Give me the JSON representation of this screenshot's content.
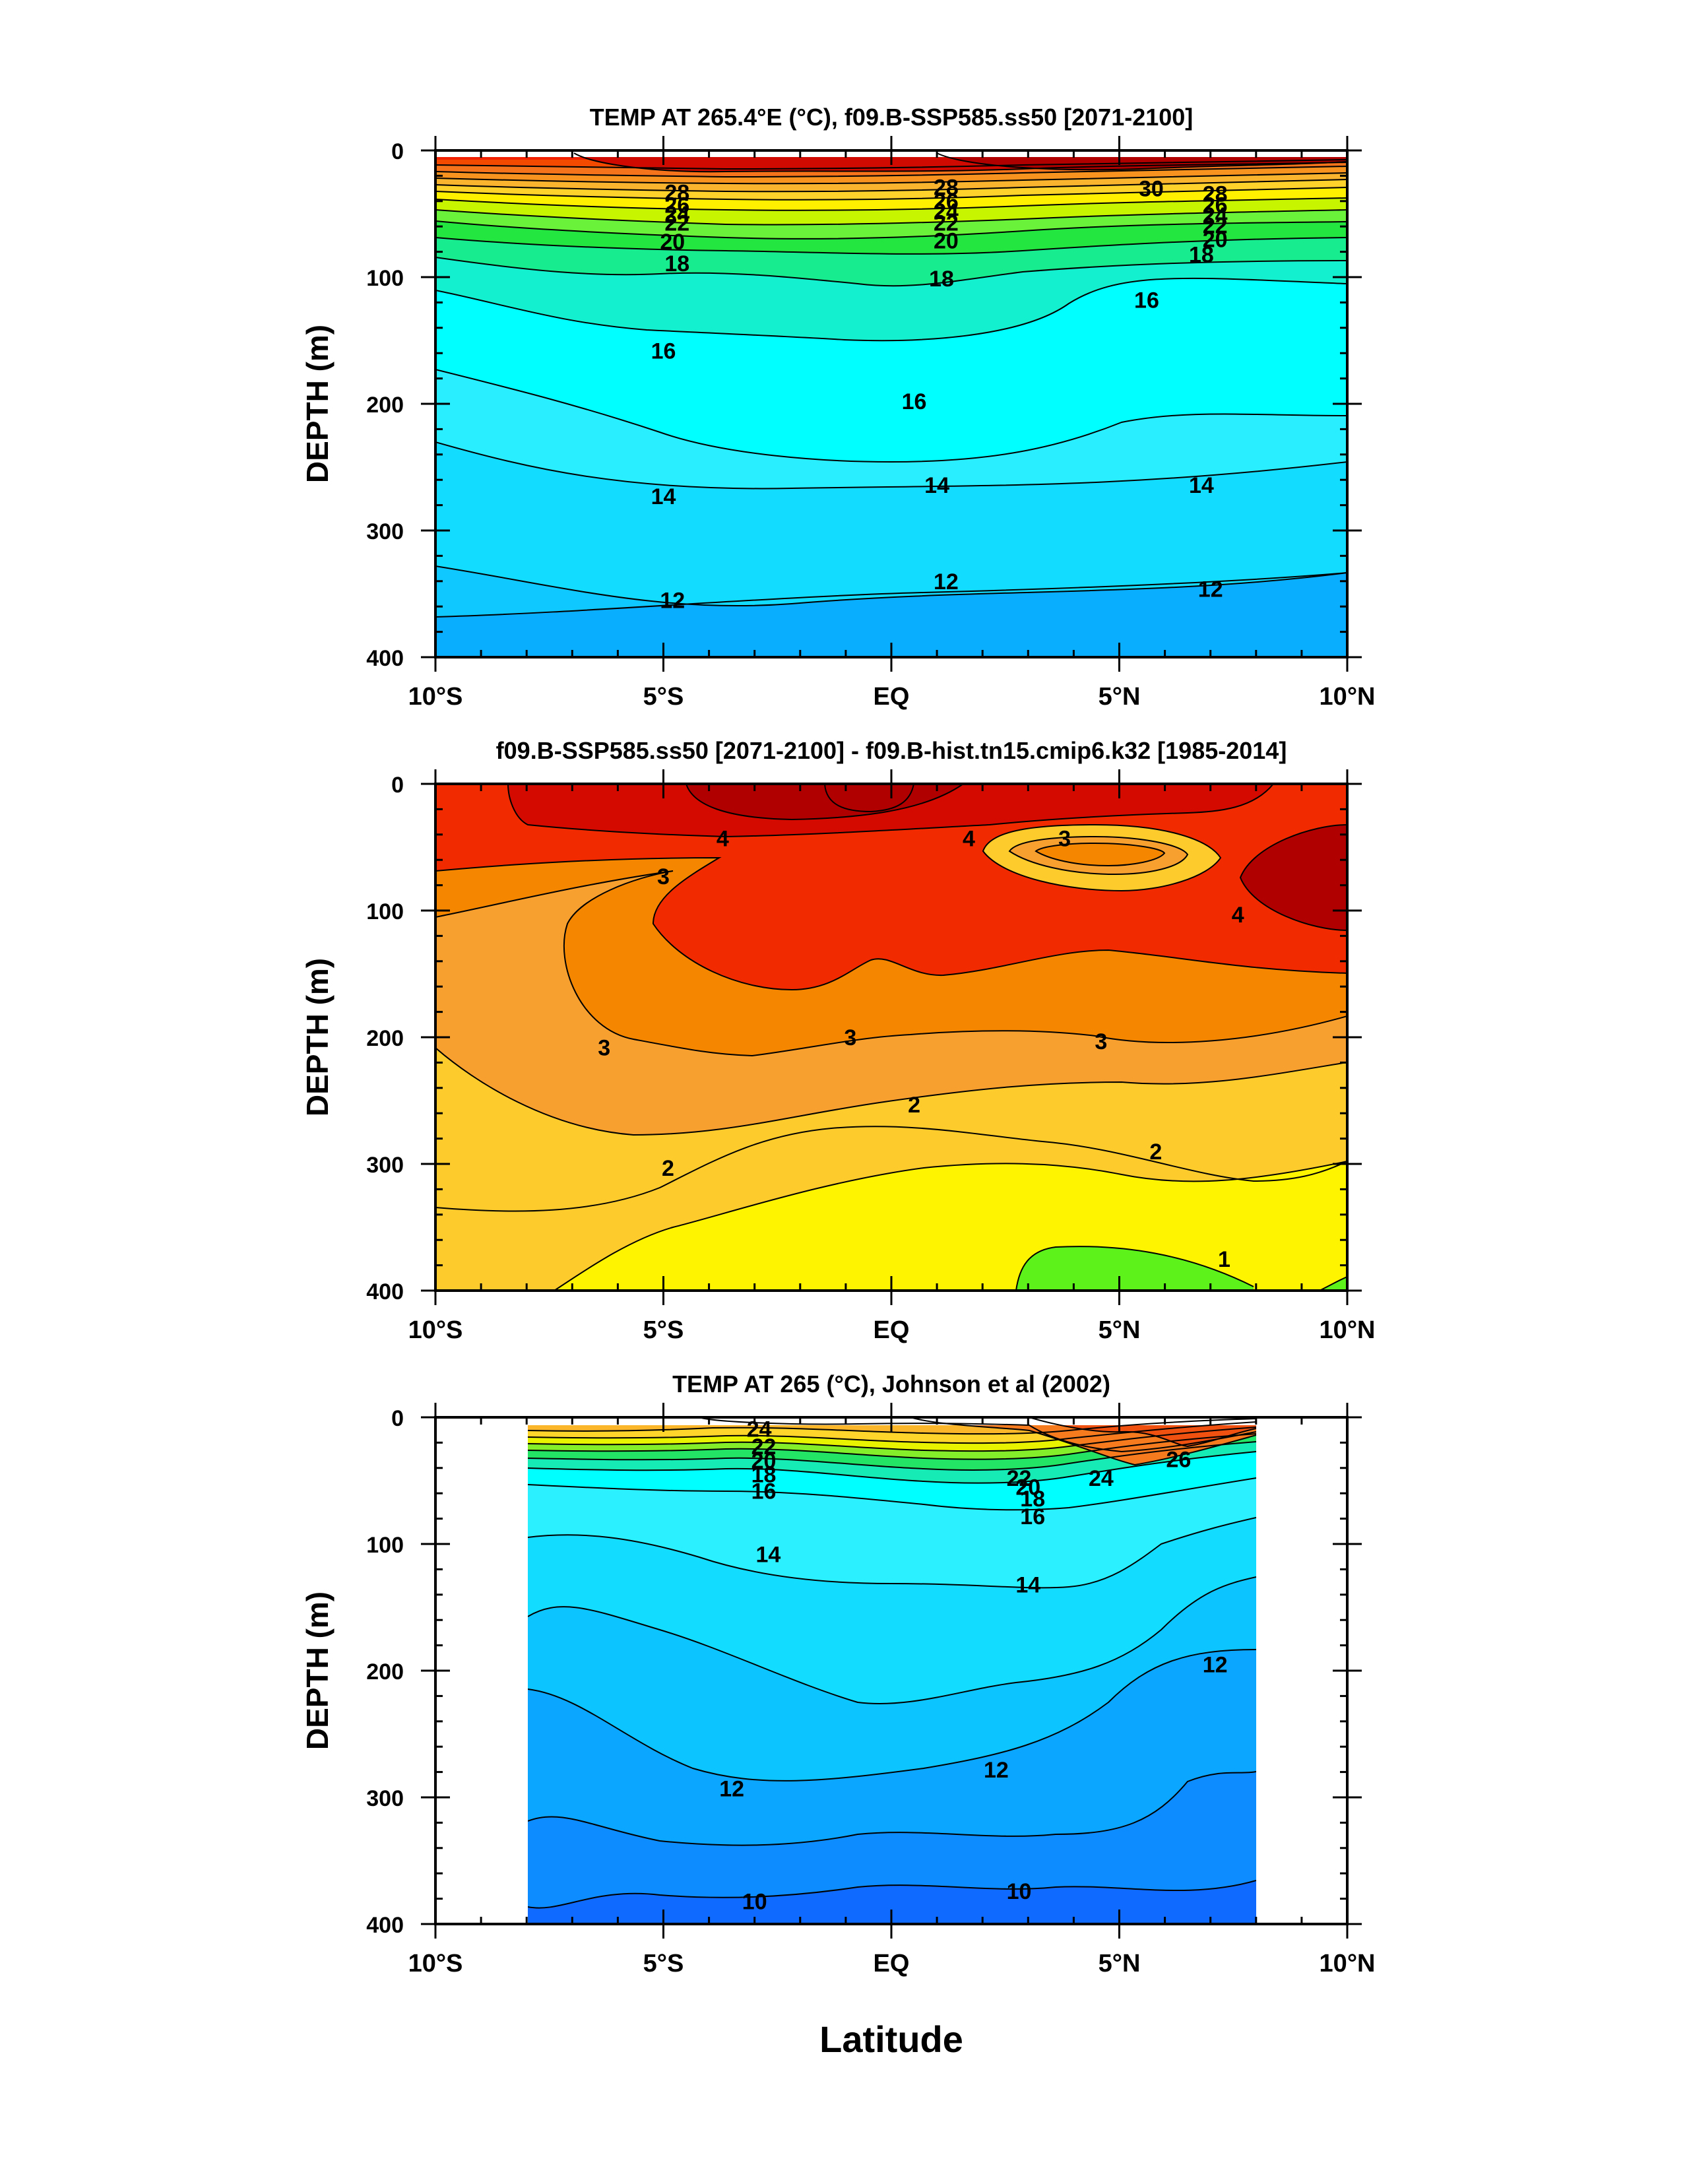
{
  "xlabel": "Latitude",
  "chart_data": [
    {
      "type": "heatmap",
      "title": "TEMP AT 265.4°E (°C), f09.B-SSP585.ss50 [2071-2100]",
      "ylabel": "DEPTH (m)",
      "xlim": [
        -10,
        10
      ],
      "ylim": [
        0,
        400
      ],
      "y_reversed": true,
      "x_ticks": [
        "10°S",
        "5°S",
        "EQ",
        "5°N",
        "10°N"
      ],
      "y_ticks": [
        "0",
        "100",
        "200",
        "300",
        "400"
      ],
      "colors": [
        "#b00000",
        "#d00a00",
        "#f02000",
        "#f34a00",
        "#f5731a",
        "#f7931e",
        "#fbb42d",
        "#ffd12b",
        "#fff000",
        "#c7f500",
        "#6af23a",
        "#23e640",
        "#17ec8e",
        "#12f0cf",
        "#00ffff",
        "#28eeff",
        "#12dcff",
        "#0ec8ff",
        "#0aaeff"
      ],
      "contour_labels": [
        {
          "x": -4.7,
          "y": 33,
          "text": "28"
        },
        {
          "x": -4.7,
          "y": 43,
          "text": "26"
        },
        {
          "x": -4.7,
          "y": 50,
          "text": "24"
        },
        {
          "x": -4.7,
          "y": 57,
          "text": "22"
        },
        {
          "x": -4.8,
          "y": 72,
          "text": "20"
        },
        {
          "x": -4.7,
          "y": 89,
          "text": "18"
        },
        {
          "x": 1.2,
          "y": 29,
          "text": "28"
        },
        {
          "x": 1.2,
          "y": 40,
          "text": "26"
        },
        {
          "x": 1.2,
          "y": 48,
          "text": "24"
        },
        {
          "x": 1.2,
          "y": 57,
          "text": "22"
        },
        {
          "x": 1.2,
          "y": 71,
          "text": "20"
        },
        {
          "x": 1.1,
          "y": 101,
          "text": "18"
        },
        {
          "x": 5.7,
          "y": 30,
          "text": "30"
        },
        {
          "x": 7.1,
          "y": 34,
          "text": "28"
        },
        {
          "x": 7.1,
          "y": 43,
          "text": "26"
        },
        {
          "x": 7.1,
          "y": 51,
          "text": "24"
        },
        {
          "x": 7.1,
          "y": 59,
          "text": "22"
        },
        {
          "x": 7.1,
          "y": 70,
          "text": "20"
        },
        {
          "x": 6.8,
          "y": 82,
          "text": "18"
        },
        {
          "x": 5.6,
          "y": 118,
          "text": "16"
        },
        {
          "x": -5.0,
          "y": 158,
          "text": "16"
        },
        {
          "x": 0.5,
          "y": 198,
          "text": "16"
        },
        {
          "x": -5.0,
          "y": 273,
          "text": "14"
        },
        {
          "x": 1.0,
          "y": 264,
          "text": "14"
        },
        {
          "x": 6.8,
          "y": 264,
          "text": "14"
        },
        {
          "x": -4.8,
          "y": 355,
          "text": "12"
        },
        {
          "x": 1.2,
          "y": 340,
          "text": "12"
        },
        {
          "x": 7.0,
          "y": 346,
          "text": "12"
        }
      ]
    },
    {
      "type": "heatmap",
      "title": "f09.B-SSP585.ss50 [2071-2100] - f09.B-hist.tn15.cmip6.k32 [1985-2014]",
      "ylabel": "DEPTH (m)",
      "xlim": [
        -10,
        10
      ],
      "ylim": [
        0,
        400
      ],
      "y_reversed": true,
      "x_ticks": [
        "10°S",
        "5°S",
        "EQ",
        "5°N",
        "10°N"
      ],
      "y_ticks": [
        "0",
        "100",
        "200",
        "300",
        "400"
      ],
      "colors": [
        "#b00000",
        "#d40a00",
        "#f22a00",
        "#f48600",
        "#f7a030",
        "#fdcc2c",
        "#fff400",
        "#5cf21a"
      ],
      "contour_labels": [
        {
          "x": -3.7,
          "y": 43,
          "text": "4"
        },
        {
          "x": 1.7,
          "y": 43,
          "text": "4"
        },
        {
          "x": 3.8,
          "y": 43,
          "text": "3"
        },
        {
          "x": 7.6,
          "y": 103,
          "text": "4"
        },
        {
          "x": -5.0,
          "y": 73,
          "text": "3"
        },
        {
          "x": -6.3,
          "y": 208,
          "text": "3"
        },
        {
          "x": -0.9,
          "y": 200,
          "text": "3"
        },
        {
          "x": 4.6,
          "y": 203,
          "text": "3"
        },
        {
          "x": 0.5,
          "y": 253,
          "text": "2"
        },
        {
          "x": -4.9,
          "y": 303,
          "text": "2"
        },
        {
          "x": 5.8,
          "y": 290,
          "text": "2"
        },
        {
          "x": 7.3,
          "y": 375,
          "text": "1"
        }
      ]
    },
    {
      "type": "heatmap",
      "title": "TEMP AT 265 (°C), Johnson et al (2002)",
      "ylabel": "DEPTH (m)",
      "xlim": [
        -10,
        10
      ],
      "ylim": [
        0,
        400
      ],
      "y_reversed": true,
      "x_ticks": [
        "10°S",
        "5°S",
        "EQ",
        "5°N",
        "10°N"
      ],
      "y_ticks": [
        "0",
        "100",
        "200",
        "300",
        "400"
      ],
      "data_extent_x": [
        -8,
        8
      ],
      "colors": [
        "#f05010",
        "#f67a1e",
        "#f99a2a",
        "#fbb62a",
        "#ffd52b",
        "#e8f300",
        "#84ee2a",
        "#24e466",
        "#16eab5",
        "#00ffff",
        "#2af0ff",
        "#12dcff",
        "#0cc4ff",
        "#0aa6ff",
        "#0c8cff",
        "#0f6aff"
      ],
      "contour_labels": [
        {
          "x": -2.9,
          "y": 9,
          "text": "24"
        },
        {
          "x": -2.8,
          "y": 23,
          "text": "22"
        },
        {
          "x": -2.8,
          "y": 34,
          "text": "20"
        },
        {
          "x": -2.8,
          "y": 45,
          "text": "18"
        },
        {
          "x": -2.8,
          "y": 58,
          "text": "16"
        },
        {
          "x": 2.8,
          "y": 48,
          "text": "22"
        },
        {
          "x": 3.0,
          "y": 55,
          "text": "20"
        },
        {
          "x": 3.1,
          "y": 64,
          "text": "18"
        },
        {
          "x": 3.1,
          "y": 78,
          "text": "16"
        },
        {
          "x": 4.6,
          "y": 48,
          "text": "24"
        },
        {
          "x": 6.3,
          "y": 33,
          "text": "26"
        },
        {
          "x": -2.7,
          "y": 108,
          "text": "14"
        },
        {
          "x": 3.0,
          "y": 132,
          "text": "14"
        },
        {
          "x": 7.1,
          "y": 195,
          "text": "12"
        },
        {
          "x": 2.3,
          "y": 278,
          "text": "12"
        },
        {
          "x": -3.5,
          "y": 293,
          "text": "12"
        },
        {
          "x": -3.0,
          "y": 382,
          "text": "10"
        },
        {
          "x": 2.8,
          "y": 374,
          "text": "10"
        }
      ]
    }
  ]
}
